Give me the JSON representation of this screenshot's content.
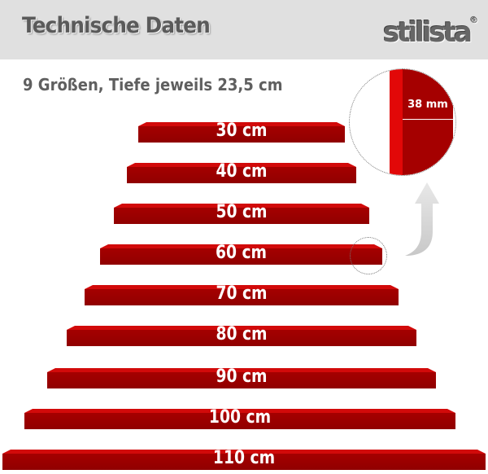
{
  "header": {
    "title": "Technische Daten",
    "logo": "stilista",
    "logo_mark": "®"
  },
  "subtitle": "9 Größen, Tiefe jeweils 23,5 cm",
  "detail": {
    "thickness_label": "38 mm"
  },
  "colors": {
    "shelf_front": "#a00000",
    "shelf_top": "#d20a0a",
    "header_bg": "#e0e0e0"
  },
  "shelves": [
    {
      "label": "30 cm"
    },
    {
      "label": "40 cm"
    },
    {
      "label": "50 cm"
    },
    {
      "label": "60 cm"
    },
    {
      "label": "70 cm"
    },
    {
      "label": "80 cm"
    },
    {
      "label": "90 cm"
    },
    {
      "label": "100 cm"
    },
    {
      "label": "110 cm"
    }
  ]
}
